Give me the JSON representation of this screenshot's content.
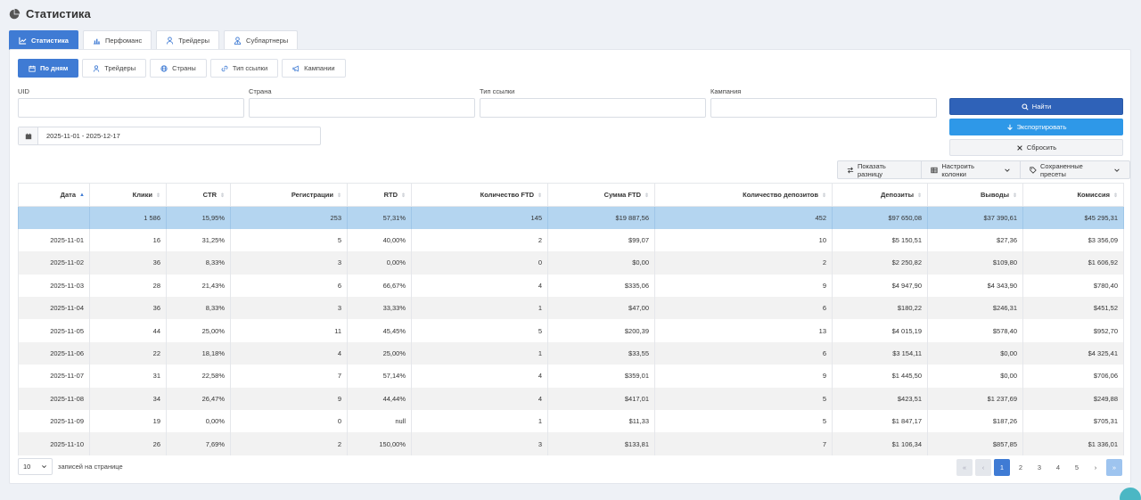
{
  "page": {
    "title": "Статистика",
    "icon": "pie-chart-icon"
  },
  "main_tabs": [
    {
      "label": "Статистика",
      "icon": "chart-line-icon",
      "active": true
    },
    {
      "label": "Перфоманс",
      "icon": "bar-chart-icon",
      "active": false
    },
    {
      "label": "Трейдеры",
      "icon": "user-icon",
      "active": false
    },
    {
      "label": "Субпартнеры",
      "icon": "user-tie-icon",
      "active": false
    }
  ],
  "sub_tabs": [
    {
      "label": "По дням",
      "icon": "calendar-icon",
      "active": true
    },
    {
      "label": "Трейдеры",
      "icon": "user-icon",
      "active": false
    },
    {
      "label": "Страны",
      "icon": "globe-icon",
      "active": false
    },
    {
      "label": "Тип ссылки",
      "icon": "link-icon",
      "active": false
    },
    {
      "label": "Кампании",
      "icon": "megaphone-icon",
      "active": false
    }
  ],
  "filters": {
    "uid_label": "UID",
    "uid_value": "",
    "country_label": "Страна",
    "country_value": "",
    "link_type_label": "Тип ссылки",
    "link_type_value": "",
    "campaign_label": "Кампания",
    "campaign_value": ""
  },
  "date_range": "2025-11-01 - 2025-12-17",
  "actions": {
    "find": "Найти",
    "export": "Экспортировать",
    "reset": "Сбросить"
  },
  "toolbar": {
    "diff": "Показать разницу",
    "columns": "Настроить колонки",
    "presets": "Сохраненные пресеты"
  },
  "table": {
    "columns": [
      "Дата",
      "Клики",
      "CTR",
      "Регистрации",
      "RTD",
      "Количество FTD",
      "Сумма FTD",
      "Количество депозитов",
      "Депозиты",
      "Выводы",
      "Комиссия"
    ],
    "total": [
      "",
      "1 586",
      "15,95%",
      "253",
      "57,31%",
      "145",
      "$19 887,56",
      "452",
      "$97 650,08",
      "$37 390,61",
      "$45 295,31"
    ],
    "rows": [
      [
        "2025-11-01",
        "16",
        "31,25%",
        "5",
        "40,00%",
        "2",
        "$99,07",
        "10",
        "$5 150,51",
        "$27,36",
        "$3 356,09"
      ],
      [
        "2025-11-02",
        "36",
        "8,33%",
        "3",
        "0,00%",
        "0",
        "$0,00",
        "2",
        "$2 250,82",
        "$109,80",
        "$1 606,92"
      ],
      [
        "2025-11-03",
        "28",
        "21,43%",
        "6",
        "66,67%",
        "4",
        "$335,06",
        "9",
        "$4 947,90",
        "$4 343,90",
        "$780,40"
      ],
      [
        "2025-11-04",
        "36",
        "8,33%",
        "3",
        "33,33%",
        "1",
        "$47,00",
        "6",
        "$180,22",
        "$246,31",
        "$451,52"
      ],
      [
        "2025-11-05",
        "44",
        "25,00%",
        "11",
        "45,45%",
        "5",
        "$200,39",
        "13",
        "$4 015,19",
        "$578,40",
        "$952,70"
      ],
      [
        "2025-11-06",
        "22",
        "18,18%",
        "4",
        "25,00%",
        "1",
        "$33,55",
        "6",
        "$3 154,11",
        "$0,00",
        "$4 325,41"
      ],
      [
        "2025-11-07",
        "31",
        "22,58%",
        "7",
        "57,14%",
        "4",
        "$359,01",
        "9",
        "$1 445,50",
        "$0,00",
        "$706,06"
      ],
      [
        "2025-11-08",
        "34",
        "26,47%",
        "9",
        "44,44%",
        "4",
        "$417,01",
        "5",
        "$423,51",
        "$1 237,69",
        "$249,88"
      ],
      [
        "2025-11-09",
        "19",
        "0,00%",
        "0",
        "null",
        "1",
        "$11,33",
        "5",
        "$1 847,17",
        "$187,26",
        "$705,31"
      ],
      [
        "2025-11-10",
        "26",
        "7,69%",
        "2",
        "150,00%",
        "3",
        "$133,81",
        "7",
        "$1 106,34",
        "$857,85",
        "$1 336,01"
      ]
    ]
  },
  "pagination": {
    "page_size": "10",
    "page_size_caption": "записей на странице",
    "first": "«",
    "prev": "‹",
    "next": "›",
    "last": "»",
    "pages": [
      "1",
      "2",
      "3",
      "4",
      "5"
    ],
    "current": "1"
  },
  "colors": {
    "primary": "#3f7bd4",
    "find": "#2f62b8",
    "export": "#2e98e8",
    "total_row": "#b4d5f0"
  }
}
